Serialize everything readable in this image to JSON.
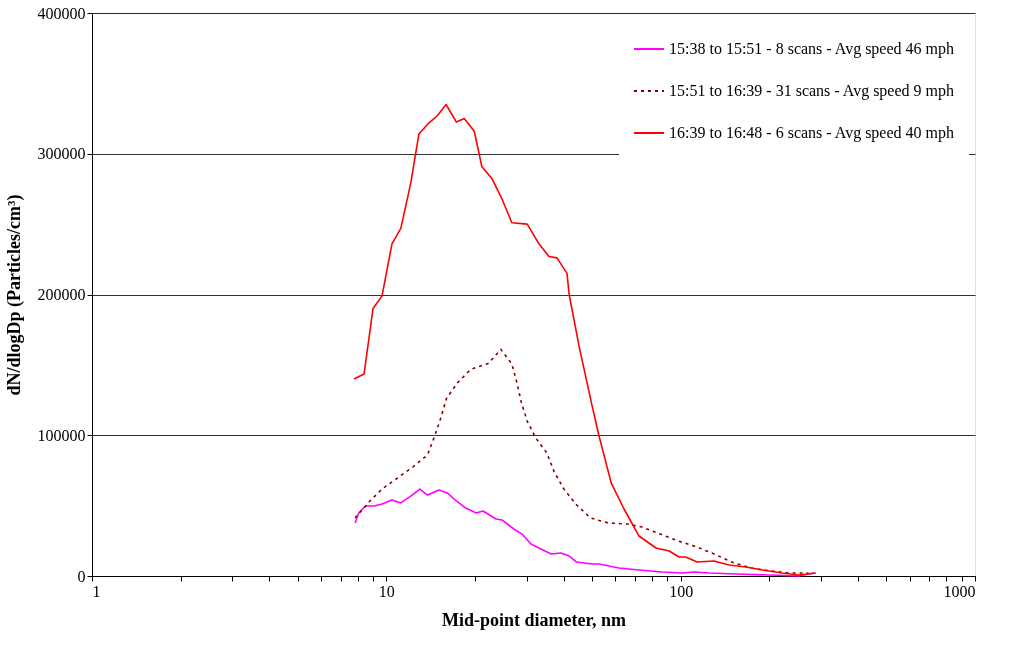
{
  "chart_data": {
    "type": "line",
    "xlabel": "Mid-point diameter, nm",
    "ylabel": "dN/dlogDp (Particles/cm³)",
    "log": "x",
    "grid": "y",
    "legend": "top right",
    "marker": "none",
    "xlim": [
      1,
      1000
    ],
    "ylim": [
      0,
      400000
    ],
    "xticks": [
      1,
      {
        "value": 2,
        "label": null
      },
      {
        "value": 3,
        "label": null
      },
      {
        "value": 4,
        "label": null
      },
      {
        "value": 5,
        "label": null
      },
      {
        "value": 6,
        "label": null
      },
      {
        "value": 7,
        "label": null
      },
      {
        "value": 8,
        "label": null
      },
      {
        "value": 9,
        "label": null
      },
      10,
      {
        "value": 20,
        "label": null
      },
      {
        "value": 30,
        "label": null
      },
      {
        "value": 40,
        "label": null
      },
      {
        "value": 50,
        "label": null
      },
      {
        "value": 60,
        "label": null
      },
      {
        "value": 70,
        "label": null
      },
      {
        "value": 80,
        "label": null
      },
      {
        "value": 90,
        "label": null
      },
      100,
      {
        "value": 200,
        "label": null
      },
      {
        "value": 300,
        "label": null
      },
      {
        "value": 400,
        "label": null
      },
      {
        "value": 500,
        "label": null
      },
      {
        "value": 600,
        "label": null
      },
      {
        "value": 700,
        "label": null
      },
      {
        "value": 800,
        "label": null
      },
      {
        "value": 900,
        "label": null
      },
      1000
    ],
    "yticks": [
      0,
      100000,
      200000,
      300000,
      400000
    ],
    "series": [
      {
        "name": "15:38 to 15:51 - 8 scans - Avg speed 46 mph",
        "color": "#ff00ff",
        "line_style": "solid",
        "x": [
          7.83,
          8.06,
          8.5,
          9.1,
          9.67,
          10.45,
          11.2,
          12.1,
          13.0,
          13.8,
          15.1,
          16.1,
          17.3,
          18.6,
          20.2,
          21.3,
          23.6,
          24.7,
          27.1,
          28.9,
          31.0,
          33.0,
          36.3,
          39.2,
          41.8,
          44.3,
          50.0,
          52.8,
          61.7,
          72.2,
          86.8,
          101,
          111,
          125,
          154,
          200,
          252,
          284
        ],
        "values": [
          37700,
          44800,
          49700,
          49700,
          51200,
          54000,
          51900,
          56800,
          61800,
          57500,
          61100,
          59000,
          53300,
          48300,
          44800,
          46200,
          40500,
          39800,
          33400,
          29800,
          22700,
          19900,
          15600,
          16300,
          14200,
          9900,
          8500,
          8500,
          5700,
          4300,
          2800,
          2100,
          2800,
          2100,
          1400,
          700,
          0,
          2100
        ]
      },
      {
        "name": "15:51 to 16:39 - 31 scans - Avg speed 9 mph",
        "color": "#800000",
        "line_style": "dashed",
        "x": [
          7.83,
          8.73,
          9.67,
          10.9,
          12.3,
          13.8,
          14.6,
          15.3,
          16.0,
          17.4,
          19.4,
          22.2,
          24.5,
          26.7,
          27.8,
          28.7,
          30.1,
          32.2,
          35.1,
          37.2,
          40.1,
          44.0,
          49.4,
          56.7,
          66.1,
          73.9,
          85.2,
          98.0,
          113.7,
          130,
          149,
          173,
          203,
          233,
          272
        ],
        "values": [
          41200,
          52600,
          61800,
          69600,
          77400,
          86000,
          99500,
          112000,
          126000,
          137000,
          147000,
          151000,
          161000,
          150600,
          137000,
          124000,
          110000,
          98000,
          87400,
          73900,
          61800,
          51200,
          41200,
          37700,
          36900,
          34800,
          29800,
          24900,
          20600,
          15600,
          9900,
          5700,
          3600,
          2100,
          2100
        ]
      },
      {
        "name": "16:39 to 16:48 - 6 scans - Avg speed 40 mph",
        "color": "#ff0000",
        "line_style": "solid",
        "x": [
          7.77,
          8.4,
          9.01,
          9.67,
          10.45,
          11.2,
          12.1,
          12.9,
          13.97,
          14.9,
          15.96,
          17.3,
          18.4,
          19.9,
          21.1,
          22.9,
          24.7,
          26.7,
          30.1,
          33.0,
          35.7,
          38.0,
          41.1,
          41.8,
          45.2,
          50.0,
          52.8,
          58.1,
          64.2,
          72.2,
          82.4,
          91.4,
          98.8,
          104,
          113.7,
          129.8,
          146,
          167,
          189,
          221,
          252,
          288
        ],
        "values": [
          140000,
          143500,
          190000,
          199000,
          236000,
          247000,
          279000,
          314000,
          322000,
          327000,
          335000,
          322500,
          325000,
          316000,
          291000,
          282000,
          268000,
          251000,
          250000,
          236000,
          227000,
          226000,
          215000,
          200000,
          163000,
          121000,
          99500,
          66000,
          47600,
          28400,
          19900,
          17800,
          13500,
          13500,
          10000,
          10700,
          7800,
          6400,
          4300,
          2100,
          700,
          2100
        ]
      }
    ]
  }
}
